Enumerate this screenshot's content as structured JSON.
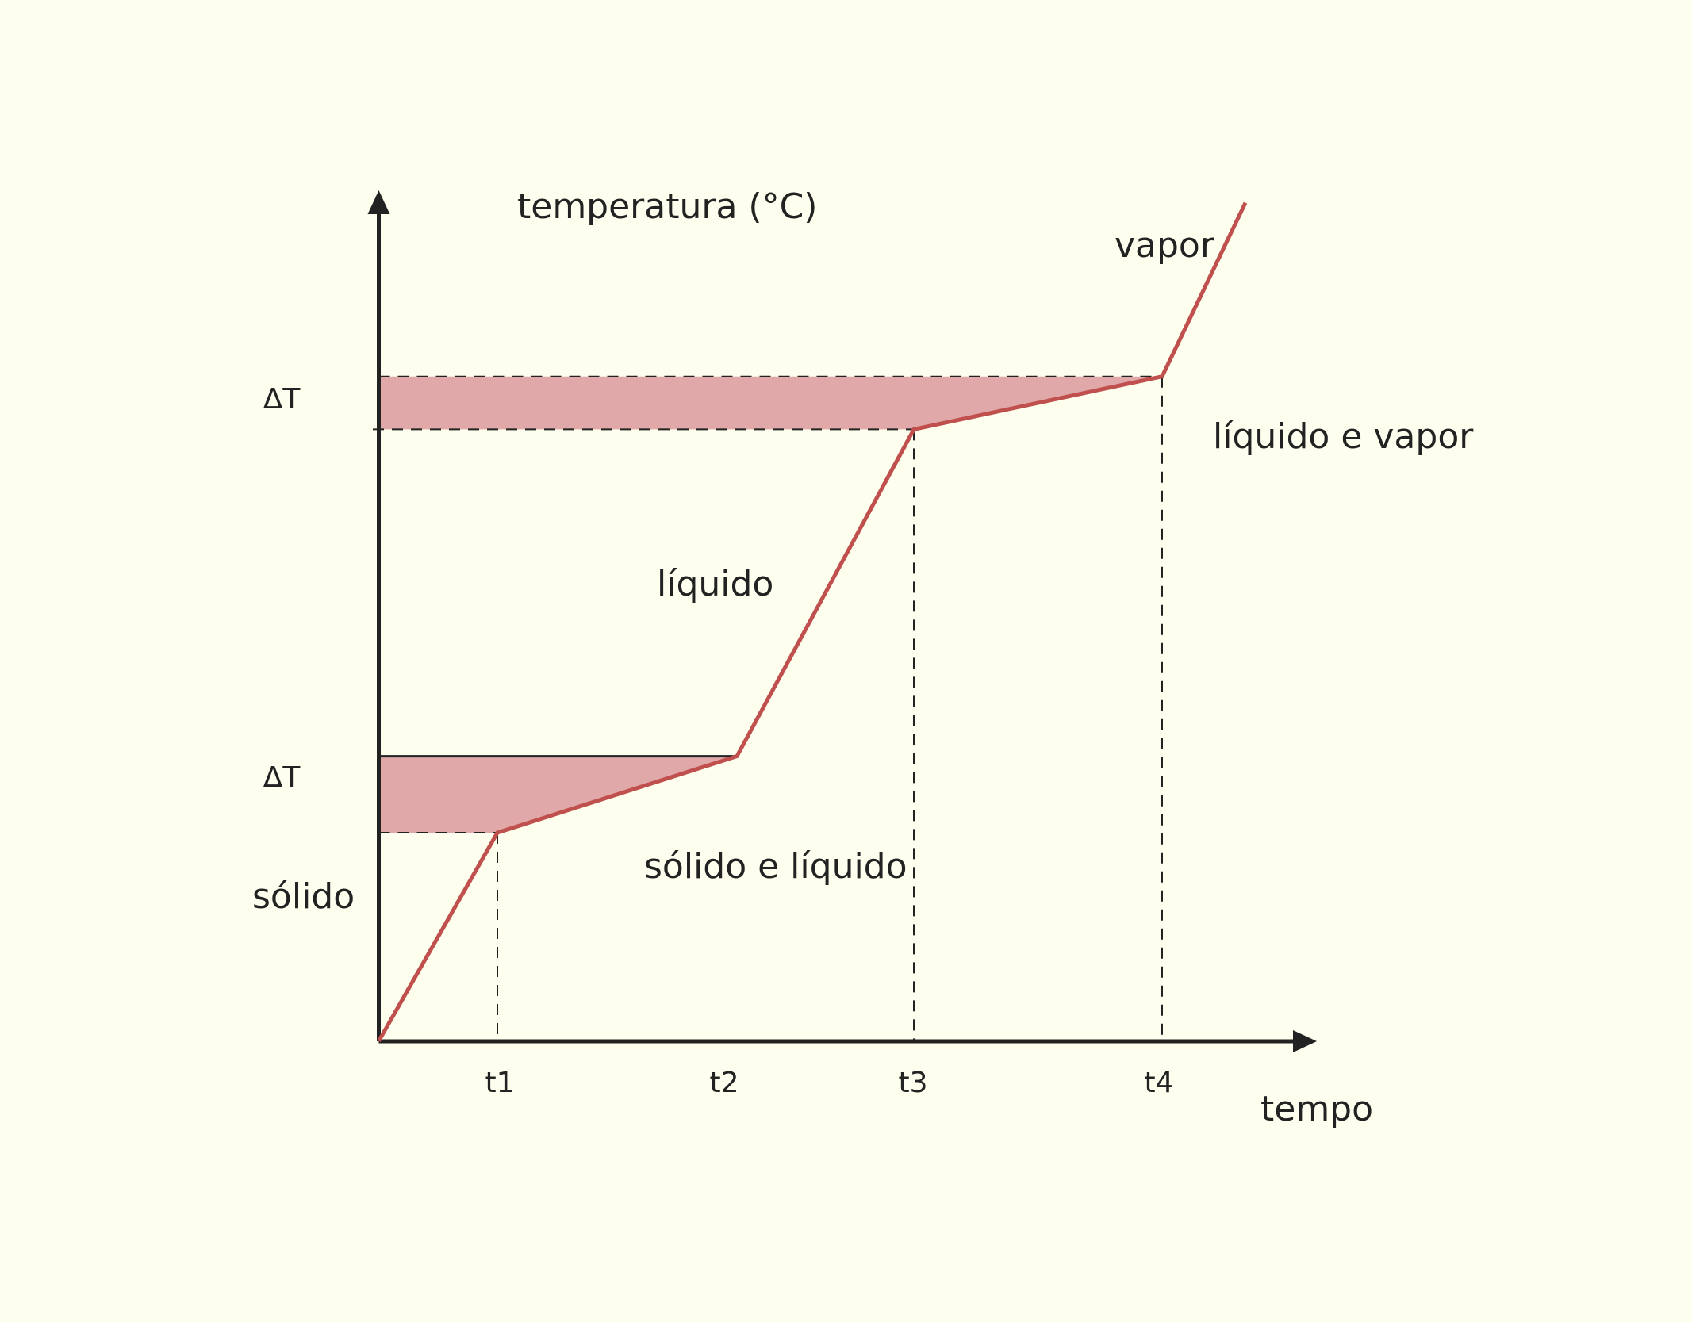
{
  "axes": {
    "y_label": "temperatura (°C)",
    "x_label": "tempo"
  },
  "x_ticks": [
    "t1",
    "t2",
    "t3",
    "t4"
  ],
  "delta_labels": [
    "ΔT",
    "ΔT"
  ],
  "regions": [
    "sólido",
    "sólido e líquido",
    "líquido",
    "líquido e vapor",
    "vapor"
  ]
}
